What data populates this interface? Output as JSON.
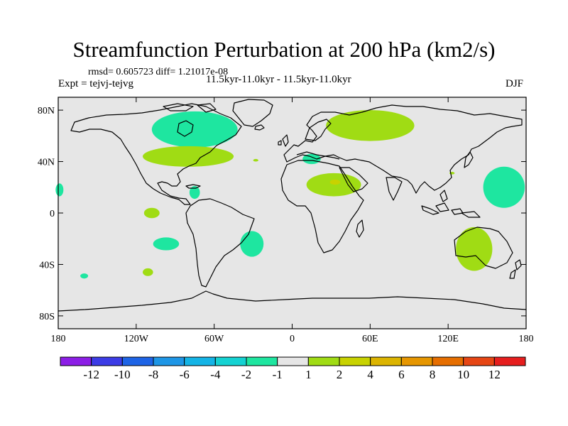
{
  "title": "Streamfunction Perturbation at 200 hPa (km2/s)",
  "stats_line": "rmsd= 0.605723 diff= 1.21017e-08",
  "left_subtitle": "Expt = tejvj-tejvg",
  "center_subtitle": "11.5kyr-11.0kyr - 11.5kyr-11.0kyr",
  "right_subtitle": "DJF",
  "chart_data": {
    "type": "heatmap",
    "projection": "cylindrical-equidistant",
    "x_range": [
      -180,
      180
    ],
    "y_range": [
      -90,
      90
    ],
    "x_ticks": [
      {
        "value": -180,
        "label": "180"
      },
      {
        "value": -120,
        "label": "120W"
      },
      {
        "value": -60,
        "label": "60W"
      },
      {
        "value": 0,
        "label": "0"
      },
      {
        "value": 60,
        "label": "60E"
      },
      {
        "value": 120,
        "label": "120E"
      },
      {
        "value": 180,
        "label": "180"
      }
    ],
    "y_ticks": [
      {
        "value": 80,
        "label": "80N"
      },
      {
        "value": 40,
        "label": "40N"
      },
      {
        "value": 0,
        "label": "0"
      },
      {
        "value": -40,
        "label": "40S"
      },
      {
        "value": -80,
        "label": "80S"
      }
    ],
    "background_color": "#e6e6e6",
    "colorbar": {
      "colors": [
        "#8c1ee6",
        "#3c3ce6",
        "#1e64e6",
        "#1e96e6",
        "#14b4e6",
        "#14d2d2",
        "#1ee6a0",
        "#e6e6e6",
        "#a0dc14",
        "#c8d200",
        "#dcb400",
        "#e69600",
        "#e66e00",
        "#e64614",
        "#e61e1e"
      ],
      "labels": [
        "-12",
        "-10",
        "-8",
        "-6",
        "-4",
        "-2",
        "-1",
        "1",
        "2",
        "4",
        "6",
        "8",
        "10",
        "12"
      ]
    },
    "anomalies": [
      {
        "level": "-1 to -2",
        "color": "#1ee6a0",
        "region": "Canada / Hudson Bay",
        "lon": -75,
        "lat": 65,
        "rlon": 33,
        "rlat": 14
      },
      {
        "level": "1 to 2",
        "color": "#a0dc14",
        "region": "North Atlantic",
        "lon": -80,
        "lat": 44,
        "rlon": 35,
        "rlat": 8
      },
      {
        "level": "1 to 2",
        "color": "#a0dc14",
        "region": "Northern Eurasia",
        "lon": 60,
        "lat": 68,
        "rlon": 34,
        "rlat": 12
      },
      {
        "level": "-1 to -2",
        "color": "#1ee6a0",
        "region": "Mediterranean",
        "lon": 15,
        "lat": 42,
        "rlon": 7,
        "rlat": 4
      },
      {
        "level": "1 to 2",
        "color": "#a0dc14",
        "region": "North Africa / Arabia",
        "lon": 32,
        "lat": 22,
        "rlon": 21,
        "rlat": 9
      },
      {
        "level": "2 to 4",
        "color": "#c8d200",
        "region": "Egypt",
        "lon": 33,
        "lat": 24,
        "rlon": 4,
        "rlat": 2
      },
      {
        "level": "-1 to -2",
        "color": "#1ee6a0",
        "region": "Western North Pacific",
        "lon": 163,
        "lat": 20,
        "rlon": 16,
        "rlat": 16
      },
      {
        "level": "-1 to -2",
        "color": "#1ee6a0",
        "region": "Western Pacific edge",
        "lon": -179,
        "lat": 18,
        "rlon": 3,
        "rlat": 5
      },
      {
        "level": "-1 to -2",
        "color": "#1ee6a0",
        "region": "Caribbean",
        "lon": -75,
        "lat": 16,
        "rlon": 4,
        "rlat": 5
      },
      {
        "level": "1 to 2",
        "color": "#a0dc14",
        "region": "Eastern Tropical Pacific",
        "lon": -108,
        "lat": 0,
        "rlon": 6,
        "rlat": 4
      },
      {
        "level": "-1 to -2",
        "color": "#1ee6a0",
        "region": "South Pacific",
        "lon": -97,
        "lat": -24,
        "rlon": 10,
        "rlat": 5
      },
      {
        "level": "-1 to -2",
        "color": "#1ee6a0",
        "region": "South Atlantic",
        "lon": -31,
        "lat": -24,
        "rlon": 9,
        "rlat": 10
      },
      {
        "level": "1 to 2",
        "color": "#a0dc14",
        "region": "Australia",
        "lon": 140,
        "lat": -28,
        "rlon": 14,
        "rlat": 17
      },
      {
        "level": "1 to 2",
        "color": "#a0dc14",
        "region": "Southeast Pacific",
        "lon": -111,
        "lat": -46,
        "rlon": 4,
        "rlat": 3
      },
      {
        "level": "-1 to -2",
        "color": "#1ee6a0",
        "region": "Far South Pacific",
        "lon": -160,
        "lat": -49,
        "rlon": 3,
        "rlat": 2
      },
      {
        "level": "1 to 2",
        "color": "#a0dc14",
        "region": "Mid-Atlantic",
        "lon": -28,
        "lat": 41,
        "rlon": 2,
        "rlat": 1
      },
      {
        "level": "1 to 2",
        "color": "#a0dc14",
        "region": "East China",
        "lon": 123,
        "lat": 31,
        "rlon": 2,
        "rlat": 1
      }
    ]
  }
}
